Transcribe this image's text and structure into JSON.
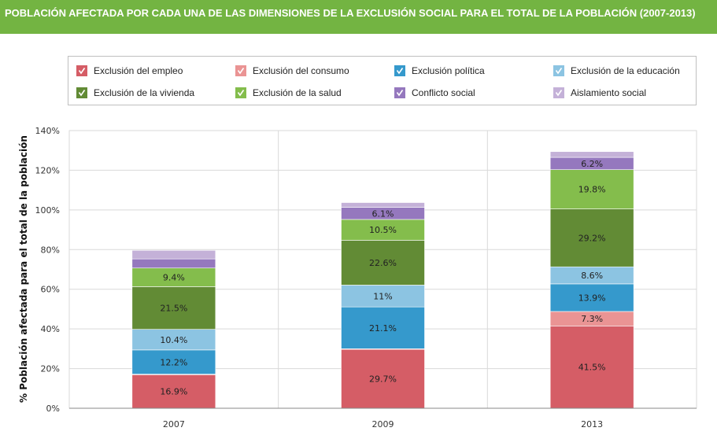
{
  "title": "POBLACIÓN AFECTADA POR CADA UNA DE LAS DIMENSIONES DE LA EXCLUSIÓN SOCIAL PARA EL TOTAL DE LA POBLACIÓN (2007-2013)",
  "colors": {
    "title_bar": "#73b442",
    "grid": "#d9d9d9",
    "axis": "#888888"
  },
  "legend": {
    "items": [
      {
        "label": "Exclusión del empleo",
        "color": "#d55d66",
        "icon": "check-icon"
      },
      {
        "label": "Exclusión del consumo",
        "color": "#ea9494",
        "icon": "check-icon"
      },
      {
        "label": "Exclusión política",
        "color": "#3599cc",
        "icon": "check-icon"
      },
      {
        "label": "Exclusión de la educación",
        "color": "#8cc4e2",
        "icon": "check-icon"
      },
      {
        "label": "Exclusión de la vivienda",
        "color": "#628b35",
        "icon": "check-icon"
      },
      {
        "label": "Exclusión de la salud",
        "color": "#84bd4c",
        "icon": "check-icon"
      },
      {
        "label": "Conflicto social",
        "color": "#9578be",
        "icon": "check-icon"
      },
      {
        "label": "Aislamiento social",
        "color": "#c4b1d8",
        "icon": "check-icon"
      }
    ]
  },
  "chart_data": {
    "type": "bar",
    "stacked": true,
    "categories": [
      "2007",
      "2009",
      "2013"
    ],
    "ylabel": "% Población afectada para el total de la población",
    "ylim": [
      0,
      140
    ],
    "yticks": [
      "0%",
      "20%",
      "40%",
      "60%",
      "80%",
      "100%",
      "120%",
      "140%"
    ],
    "grid": true,
    "legend_position": "top",
    "series": [
      {
        "name": "Exclusión del empleo",
        "values": [
          16.9,
          29.7,
          41.5
        ],
        "labels": [
          "16.9%",
          "29.7%",
          "41.5%"
        ]
      },
      {
        "name": "Exclusión del consumo",
        "values": [
          0.3,
          0.3,
          7.3
        ],
        "labels": [
          "",
          "",
          "7.3%"
        ]
      },
      {
        "name": "Exclusión política",
        "values": [
          12.2,
          21.1,
          13.9
        ],
        "labels": [
          "12.2%",
          "21.1%",
          "13.9%"
        ]
      },
      {
        "name": "Exclusión de la educación",
        "values": [
          10.4,
          11,
          8.6
        ],
        "labels": [
          "10.4%",
          "11%",
          "8.6%"
        ]
      },
      {
        "name": "Exclusión de la vivienda",
        "values": [
          21.5,
          22.6,
          29.2
        ],
        "labels": [
          "21.5%",
          "22.6%",
          "29.2%"
        ]
      },
      {
        "name": "Exclusión de la salud",
        "values": [
          9.4,
          10.5,
          19.8
        ],
        "labels": [
          "9.4%",
          "10.5%",
          "19.8%"
        ]
      },
      {
        "name": "Conflicto social",
        "values": [
          4.6,
          6.1,
          6.2
        ],
        "labels": [
          "",
          "6.1%",
          "6.2%"
        ]
      },
      {
        "name": "Aislamiento social",
        "values": [
          4.3,
          2.4,
          2.9
        ],
        "labels": [
          "",
          "",
          ""
        ]
      }
    ]
  }
}
